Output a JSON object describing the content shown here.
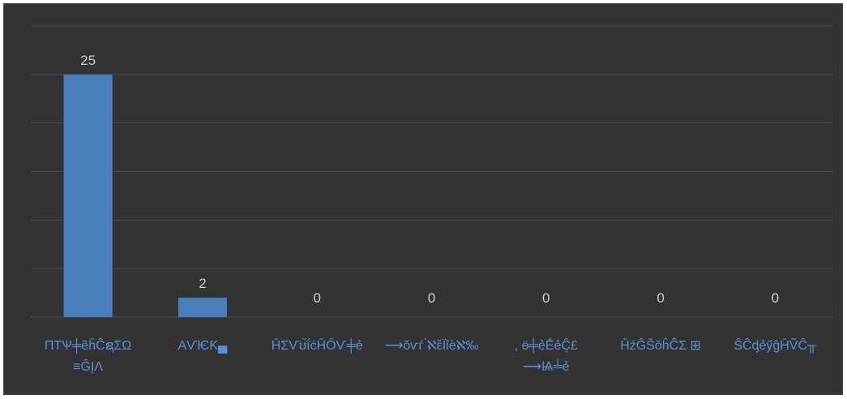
{
  "chart_data": {
    "type": "bar",
    "title": "",
    "xlabel": "",
    "ylabel": "",
    "categories": [
      [
        "ПТѰ╪ẽĥĈ̂ຊΣΩ",
        "≡ĜĮΛ"
      ],
      [
        "ΑѴѤƘ▄"
      ],
      [
        "ĤΣѴ̈ʊ̆ḯċĤŐѴ╪ẻ"
      ],
      [
        "⟶ŏѵѓ ́ℵἔЇỉѐℵ‰"
      ],
      [
        ", ӫ╪ẻḖẻĈ̨£",
        "⟶Ѩ╧ẻ"
      ],
      [
        "ĤźĜŠŏĥĈ̂Σ ⊞"
      ],
      [
        "ŜĈ̂ᶁẻӳĝĤṼĈ╥"
      ]
    ],
    "values": [
      25,
      2,
      0,
      0,
      0,
      0,
      0
    ],
    "data_labels": [
      "25",
      "2",
      "0",
      "0",
      "0",
      "0",
      "0"
    ],
    "ylim": [
      0,
      30
    ],
    "grid": true,
    "legend": "none",
    "colors": {
      "background": "#333333",
      "bar": "#4a7ebb",
      "grid": "#4c4c4c",
      "data_label": "#cfcfcf",
      "tick_label": "#5b8fd6"
    }
  }
}
